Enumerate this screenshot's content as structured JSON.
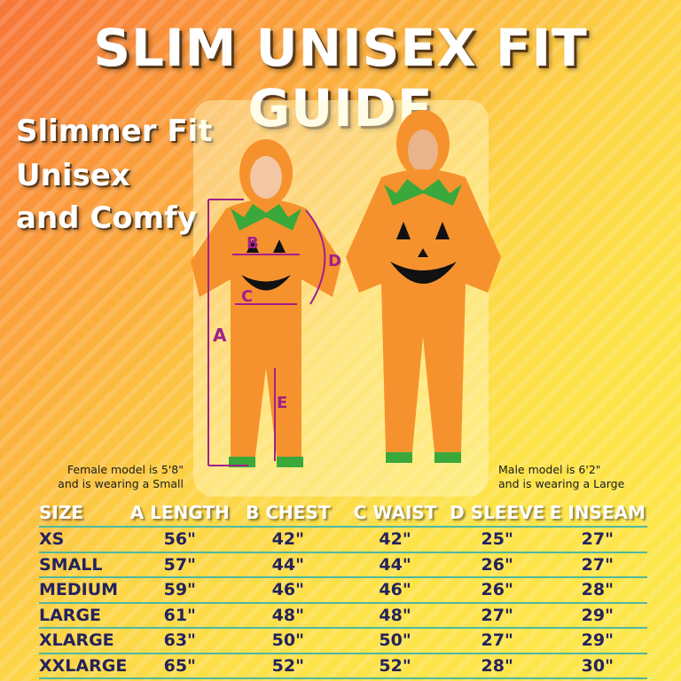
{
  "title": "SLIM UNISEX FIT GUIDE",
  "subtitle": [
    "Slimmer Fit",
    "Unisex",
    "and Comfy"
  ],
  "measure_labels": [
    "A",
    "B",
    "C",
    "D",
    "E"
  ],
  "captions": {
    "female": [
      "Female model is 5'8\"",
      "and is wearing a Small"
    ],
    "male": [
      "Male model is 6'2\"",
      "and is wearing a Large"
    ]
  },
  "table": {
    "headers": [
      "SIZE",
      "A LENGTH",
      "B CHEST",
      "C WAIST",
      "D SLEEVE",
      "E INSEAM"
    ],
    "rows": [
      [
        "XS",
        "56\"",
        "42\"",
        "42\"",
        "25\"",
        "27\""
      ],
      [
        "SMALL",
        "57\"",
        "44\"",
        "44\"",
        "26\"",
        "27\""
      ],
      [
        "MEDIUM",
        "59\"",
        "46\"",
        "46\"",
        "26\"",
        "28\""
      ],
      [
        "LARGE",
        "61\"",
        "48\"",
        "48\"",
        "27\"",
        "29\""
      ],
      [
        "XLARGE",
        "63\"",
        "50\"",
        "50\"",
        "27\"",
        "29\""
      ],
      [
        "XXLARGE",
        "65\"",
        "52\"",
        "52\"",
        "28\"",
        "30\""
      ]
    ]
  },
  "colors": {
    "costume": "#f6922e",
    "leaf": "#3aa83a",
    "measure": "#a0208a",
    "value_text": "#23235e",
    "rule": "#4fb7a0"
  }
}
